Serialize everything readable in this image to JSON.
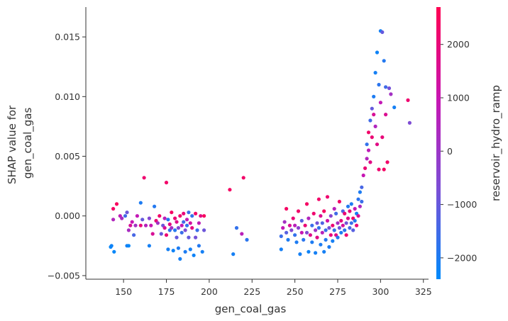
{
  "chart_data": {
    "type": "scatter",
    "title": "",
    "xlabel": "gen_coal_gas",
    "ylabel_lines": [
      "SHAP value for",
      "gen_coal_gas"
    ],
    "xlim": [
      128,
      328
    ],
    "ylim": [
      -0.0053,
      0.0175
    ],
    "xticks": [
      150,
      175,
      200,
      225,
      250,
      275,
      300,
      325
    ],
    "xtick_labels": [
      "150",
      "175",
      "200",
      "225",
      "250",
      "275",
      "300",
      "325"
    ],
    "yticks": [
      -0.005,
      0.0,
      0.005,
      0.01,
      0.015
    ],
    "ytick_labels": [
      "−0.005",
      "0.000",
      "0.005",
      "0.010",
      "0.015"
    ],
    "grid": false,
    "colorbar": {
      "label": "reservoir_hydro_ramp",
      "range": [
        -2400,
        2700
      ],
      "ticks": [
        2000,
        1000,
        0,
        -1000,
        -2000
      ],
      "tick_labels": [
        "2000",
        "1000",
        "0",
        "−1000",
        "−2000"
      ],
      "colors": [
        "#008afb",
        "#7b4fd6",
        "#c716b3",
        "#ff0052"
      ]
    },
    "points": [
      [
        142.5,
        -0.0026,
        -2300
      ],
      [
        143,
        -0.0025,
        -2200
      ],
      [
        144.5,
        -0.003,
        -2300
      ],
      [
        144,
        0.0006,
        2400
      ],
      [
        146,
        0.001,
        2500
      ],
      [
        144,
        -0.0003,
        500
      ],
      [
        148,
        0.0,
        800
      ],
      [
        149,
        -0.0002,
        300
      ],
      [
        151,
        0.0,
        -1500
      ],
      [
        152,
        0.0003,
        -900
      ],
      [
        152,
        -0.0025,
        -2100
      ],
      [
        153,
        -0.0025,
        -2300
      ],
      [
        153,
        -0.0012,
        300
      ],
      [
        154,
        -0.0008,
        1500
      ],
      [
        155,
        -0.0005,
        1000
      ],
      [
        156,
        -0.0016,
        -1400
      ],
      [
        157,
        -0.0008,
        200
      ],
      [
        158,
        0.0,
        900
      ],
      [
        160,
        -0.0008,
        2000
      ],
      [
        160,
        0.0011,
        -2000
      ],
      [
        161,
        -0.0003,
        -1000
      ],
      [
        162,
        0.0032,
        2200
      ],
      [
        163,
        -0.0008,
        600
      ],
      [
        165,
        -0.0002,
        -500
      ],
      [
        165,
        -0.0025,
        -2100
      ],
      [
        166,
        -0.0008,
        1000
      ],
      [
        167,
        -0.0015,
        1500
      ],
      [
        168,
        0.0008,
        -1900
      ],
      [
        169,
        -0.0004,
        2000
      ],
      [
        170,
        -0.0006,
        200
      ],
      [
        171,
        0.0,
        2300
      ],
      [
        172,
        -0.0015,
        -1000
      ],
      [
        173,
        -0.0008,
        -900
      ],
      [
        174,
        -0.001,
        1500
      ],
      [
        174,
        -0.0002,
        700
      ],
      [
        175,
        0.0028,
        2300
      ],
      [
        175,
        -0.0016,
        2100
      ],
      [
        176,
        -0.0003,
        -1900
      ],
      [
        176,
        -0.0028,
        -2100
      ],
      [
        177,
        -0.0012,
        -1700
      ],
      [
        177,
        -0.0007,
        1800
      ],
      [
        178,
        0.0003,
        2400
      ],
      [
        178,
        -0.001,
        200
      ],
      [
        179,
        -0.0029,
        -2200
      ],
      [
        180,
        -0.0012,
        -1900
      ],
      [
        180,
        -0.0002,
        2100
      ],
      [
        181,
        -0.0005,
        1700
      ],
      [
        181,
        -0.0018,
        -1000
      ],
      [
        182,
        -0.0027,
        -2000
      ],
      [
        182,
        -0.001,
        -500
      ],
      [
        183,
        0.0,
        2200
      ],
      [
        183,
        -0.0036,
        -2100
      ],
      [
        184,
        -0.0008,
        900
      ],
      [
        184,
        -0.0014,
        -1600
      ],
      [
        185,
        -0.0005,
        -1500
      ],
      [
        185,
        0.0002,
        2000
      ],
      [
        186,
        -0.003,
        -2000
      ],
      [
        186,
        -0.0012,
        -700
      ],
      [
        187,
        -0.0003,
        800
      ],
      [
        187,
        -0.0008,
        -1700
      ],
      [
        188,
        0.0003,
        -1600
      ],
      [
        188,
        -0.0018,
        -1000
      ],
      [
        189,
        -0.0028,
        -2100
      ],
      [
        189,
        -0.0006,
        1300
      ],
      [
        190,
        0.0,
        -1700
      ],
      [
        190,
        -0.001,
        1900
      ],
      [
        191,
        -0.0033,
        -2200
      ],
      [
        192,
        0.0002,
        2300
      ],
      [
        192,
        -0.0018,
        -800
      ],
      [
        193,
        -0.0012,
        -1600
      ],
      [
        194,
        -0.0006,
        800
      ],
      [
        194,
        -0.0025,
        -1900
      ],
      [
        195,
        0.0,
        1800
      ],
      [
        196,
        -0.003,
        -2100
      ],
      [
        197,
        -0.0012,
        -900
      ],
      [
        197,
        0.0,
        2500
      ],
      [
        212,
        0.0022,
        2400
      ],
      [
        214,
        -0.0032,
        -2100
      ],
      [
        216,
        -0.001,
        -1700
      ],
      [
        219,
        -0.0015,
        700
      ],
      [
        220,
        0.0032,
        2300
      ],
      [
        222,
        -0.002,
        -1800
      ],
      [
        242,
        -0.0028,
        -2100
      ],
      [
        242,
        -0.0017,
        -1600
      ],
      [
        243,
        -0.001,
        900
      ],
      [
        244,
        -0.0005,
        200
      ],
      [
        245,
        -0.0014,
        -1200
      ],
      [
        245,
        0.0006,
        2400
      ],
      [
        246,
        -0.002,
        -2000
      ],
      [
        247,
        -0.0008,
        1500
      ],
      [
        248,
        -0.0012,
        -500
      ],
      [
        249,
        -0.0002,
        2100
      ],
      [
        250,
        -0.0016,
        -1700
      ],
      [
        250,
        -0.0008,
        700
      ],
      [
        251,
        -0.0022,
        -2000
      ],
      [
        252,
        -0.001,
        -300
      ],
      [
        252,
        0.0004,
        2300
      ],
      [
        253,
        -0.0032,
        -2100
      ],
      [
        254,
        -0.0014,
        1000
      ],
      [
        254,
        -0.0004,
        -1200
      ],
      [
        255,
        -0.002,
        -1800
      ],
      [
        256,
        -0.0008,
        2100
      ],
      [
        257,
        0.001,
        2400
      ],
      [
        257,
        -0.0014,
        -500
      ],
      [
        258,
        -0.003,
        -2200
      ],
      [
        258,
        -0.0002,
        500
      ],
      [
        259,
        -0.0016,
        1700
      ],
      [
        260,
        -0.0008,
        -1600
      ],
      [
        260,
        -0.0022,
        -2000
      ],
      [
        261,
        0.0002,
        2200
      ],
      [
        262,
        -0.0012,
        100
      ],
      [
        262,
        -0.0031,
        -2100
      ],
      [
        263,
        -0.0006,
        -800
      ],
      [
        263,
        -0.0018,
        1800
      ],
      [
        264,
        0.0014,
        2300
      ],
      [
        264,
        -0.001,
        -1700
      ],
      [
        265,
        -0.0024,
        -2000
      ],
      [
        265,
        0.0,
        1600
      ],
      [
        266,
        -0.0014,
        600
      ],
      [
        266,
        -0.0006,
        -1300
      ],
      [
        267,
        -0.003,
        -2100
      ],
      [
        267,
        0.0004,
        2400
      ],
      [
        268,
        -0.0012,
        -1600
      ],
      [
        268,
        -0.002,
        -1900
      ],
      [
        269,
        -0.0004,
        1200
      ],
      [
        269,
        0.0016,
        2200
      ],
      [
        270,
        -0.001,
        -800
      ],
      [
        270,
        -0.0026,
        -2000
      ],
      [
        271,
        -0.0016,
        1900
      ],
      [
        271,
        0.0,
        -400
      ],
      [
        272,
        -0.0008,
        2100
      ],
      [
        272,
        -0.0021,
        -2100
      ],
      [
        273,
        0.0006,
        700
      ],
      [
        273,
        -0.0012,
        -1700
      ],
      [
        274,
        -0.0016,
        1800
      ],
      [
        274,
        0.0002,
        -1500
      ],
      [
        275,
        -0.0006,
        300
      ],
      [
        275,
        -0.0018,
        -1900
      ],
      [
        276,
        0.0012,
        2300
      ],
      [
        276,
        -0.001,
        -900
      ],
      [
        277,
        -0.0004,
        1900
      ],
      [
        277,
        -0.0014,
        -2000
      ],
      [
        278,
        0.0004,
        -1300
      ],
      [
        278,
        -0.0008,
        1400
      ],
      [
        279,
        -0.0012,
        -1800
      ],
      [
        279,
        0.0002,
        2100
      ],
      [
        280,
        -0.0006,
        -800
      ],
      [
        280,
        -0.0016,
        2200
      ],
      [
        281,
        0.0008,
        -1900
      ],
      [
        281,
        -0.0002,
        1700
      ],
      [
        282,
        -0.001,
        -1400
      ],
      [
        282,
        0.0004,
        2000
      ],
      [
        283,
        -0.0006,
        -1600
      ],
      [
        283,
        0.001,
        -2000
      ],
      [
        284,
        -0.0002,
        2300
      ],
      [
        284,
        -0.0012,
        -1200
      ],
      [
        285,
        0.0006,
        900
      ],
      [
        285,
        -0.0004,
        -1900
      ],
      [
        286,
        -0.0008,
        2000
      ],
      [
        286,
        0.0002,
        -2100
      ],
      [
        287,
        0.0014,
        -1800
      ],
      [
        287,
        0.0,
        1500
      ],
      [
        288,
        0.002,
        -2000
      ],
      [
        288,
        0.0008,
        400
      ],
      [
        289,
        0.0012,
        -1600
      ],
      [
        289,
        0.0024,
        -1400
      ],
      [
        290,
        0.0034,
        1000
      ],
      [
        291,
        0.004,
        2100
      ],
      [
        292,
        0.0048,
        500
      ],
      [
        292,
        0.006,
        -1700
      ],
      [
        293,
        0.007,
        2300
      ],
      [
        293,
        0.0055,
        800
      ],
      [
        294,
        0.008,
        -1500
      ],
      [
        294,
        0.0045,
        1800
      ],
      [
        295,
        0.009,
        -1000
      ],
      [
        295,
        0.0066,
        2100
      ],
      [
        296,
        0.01,
        -2000
      ],
      [
        296,
        0.0085,
        1500
      ],
      [
        297,
        0.012,
        -2100
      ],
      [
        297,
        0.0075,
        500
      ],
      [
        298,
        0.0137,
        -2200
      ],
      [
        298,
        0.006,
        1800
      ],
      [
        299,
        0.011,
        -1800
      ],
      [
        299,
        0.0039,
        2200
      ],
      [
        300,
        0.0155,
        -2100
      ],
      [
        300,
        0.0095,
        900
      ],
      [
        301,
        0.0154,
        -1000
      ],
      [
        301,
        0.0066,
        2000
      ],
      [
        302,
        0.013,
        -1900
      ],
      [
        302,
        0.0039,
        2400
      ],
      [
        303,
        0.0108,
        -1500
      ],
      [
        303,
        0.0085,
        1600
      ],
      [
        304,
        0.0045,
        2300
      ],
      [
        305,
        0.0107,
        -800
      ],
      [
        306,
        0.0102,
        200
      ],
      [
        308,
        0.0091,
        -2100
      ],
      [
        316,
        0.0097,
        2200
      ],
      [
        317,
        0.0078,
        -600
      ]
    ]
  }
}
